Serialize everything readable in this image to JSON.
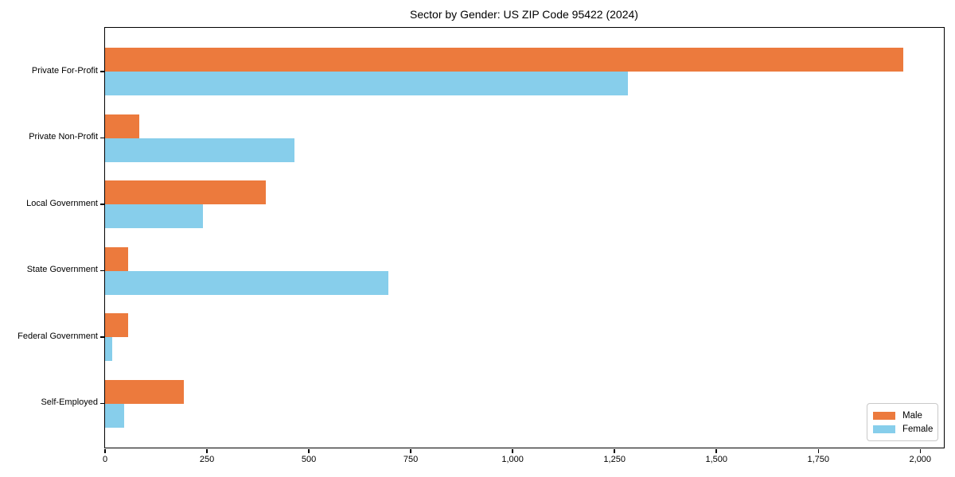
{
  "title": "Sector by Gender: US ZIP Code 95422 (2024)",
  "chart_data": {
    "type": "bar",
    "orientation": "horizontal",
    "title": "Sector by Gender: US ZIP Code 95422 (2024)",
    "xlabel": "",
    "ylabel": "",
    "categories": [
      "Private For-Profit",
      "Private Non-Profit",
      "Local Government",
      "State Government",
      "Federal Government",
      "Self-Employed"
    ],
    "series": [
      {
        "name": "Male",
        "color": "#ec7a3d",
        "values": [
          1958,
          83,
          394,
          57,
          57,
          193
        ]
      },
      {
        "name": "Female",
        "color": "#87ceeb",
        "values": [
          1282,
          464,
          241,
          696,
          18,
          47
        ]
      }
    ],
    "xlim": [
      0,
      2058
    ],
    "x_ticks": [
      0,
      250,
      500,
      750,
      1000,
      1250,
      1500,
      1750,
      2000
    ],
    "x_tick_labels": [
      "0",
      "250",
      "500",
      "750",
      "1,000",
      "1,250",
      "1,500",
      "1,750",
      "2,000"
    ],
    "grid": false,
    "legend_position": "lower right",
    "frame_color": "#000000",
    "background_color": "#ffffff"
  }
}
